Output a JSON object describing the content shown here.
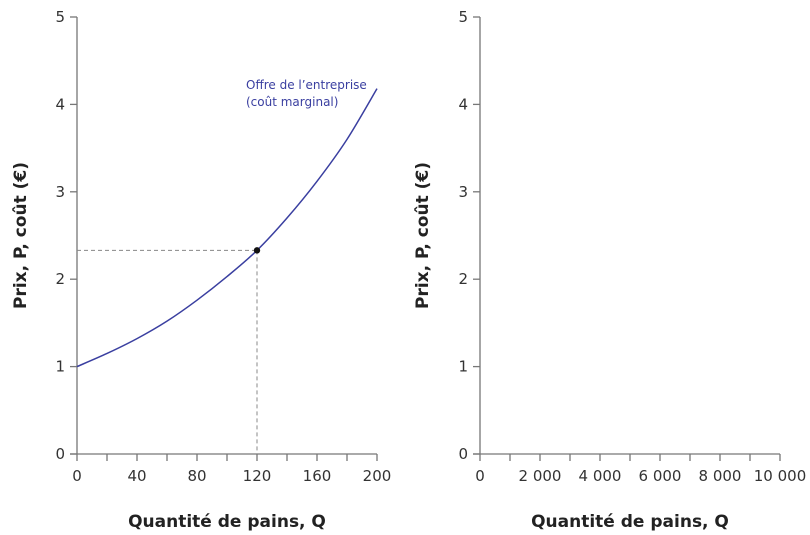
{
  "chart_data": [
    {
      "type": "line",
      "xlabel": "Quantité de pains, Q",
      "ylabel": "Prix, P, coût (€)",
      "xlim": [
        0,
        200
      ],
      "ylim": [
        0,
        5
      ],
      "xticks": [
        "0",
        "40",
        "80",
        "120",
        "160",
        "200"
      ],
      "xticks_minor_step": 20,
      "yticks": [
        "0",
        "1",
        "2",
        "3",
        "4",
        "5"
      ],
      "grid": false,
      "series": [
        {
          "name": "Offre de l’entreprise (coût marginal)",
          "label_lines": [
            "Offre de l’entreprise",
            "(coût marginal)"
          ],
          "color": "#3a3fa0",
          "x": [
            0,
            20,
            40,
            60,
            80,
            100,
            120,
            140,
            160,
            180,
            200
          ],
          "y": [
            1.0,
            1.15,
            1.32,
            1.52,
            1.76,
            2.03,
            2.33,
            2.7,
            3.12,
            3.6,
            4.18
          ]
        }
      ],
      "highlight_point": {
        "x": 120,
        "y": 2.33,
        "dashed_guides": true
      }
    },
    {
      "type": "line",
      "xlabel": "Quantité de pains, Q",
      "ylabel": "Prix, P, coût (€)",
      "xlim": [
        0,
        10000
      ],
      "ylim": [
        0,
        5
      ],
      "xticks": [
        "0",
        "2 000",
        "4 000",
        "6 000",
        "8 000",
        "10 000"
      ],
      "xticks_minor_step": 1000,
      "yticks": [
        "0",
        "1",
        "2",
        "3",
        "4",
        "5"
      ],
      "grid": false,
      "series": []
    }
  ]
}
